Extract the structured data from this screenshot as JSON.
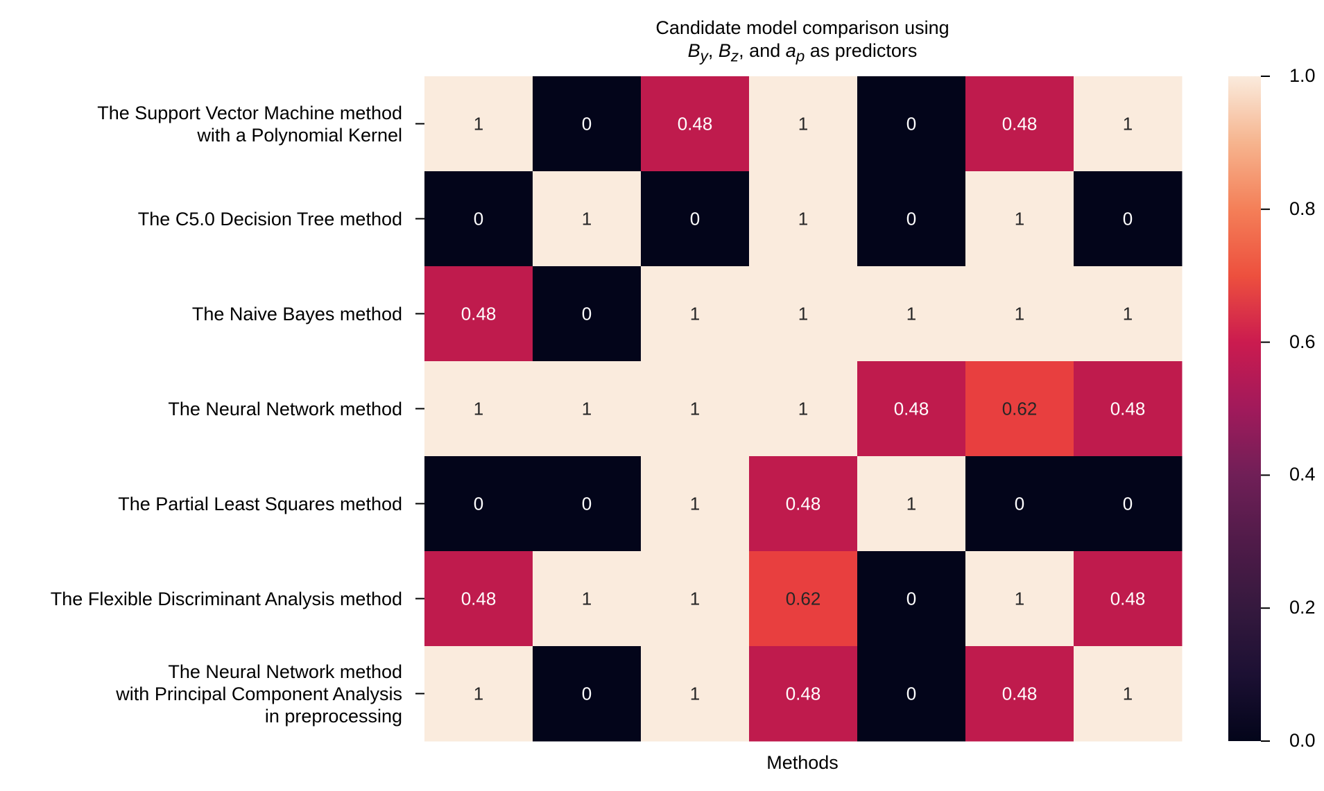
{
  "chart_data": {
    "type": "heatmap",
    "title_lines": [
      "Candidate model comparison using",
      "By, Bz, and ap as predictors"
    ],
    "title_math": {
      "pre": "",
      "v1": "B",
      "s1": "y",
      "sep1": ", ",
      "v2": "B",
      "s2": "z",
      "sep2": ", and ",
      "v3": "a",
      "s3": "p",
      "post": " as predictors"
    },
    "xlabel": "Methods",
    "ylabel": "",
    "row_labels": [
      [
        "The Support Vector Machine method",
        "with a Polynomial Kernel"
      ],
      [
        "The C5.0 Decision Tree method"
      ],
      [
        "The Naive Bayes method"
      ],
      [
        "The Neural Network method"
      ],
      [
        "The Partial Least Squares method"
      ],
      [
        "The Flexible Discriminant Analysis method"
      ],
      [
        "The Neural Network method",
        "with Principal Component Analysis",
        "in preprocessing"
      ]
    ],
    "values": [
      [
        1,
        0,
        0.48,
        1,
        0,
        0.48,
        1
      ],
      [
        0,
        1,
        0,
        1,
        0,
        1,
        0
      ],
      [
        0.48,
        0,
        1,
        1,
        1,
        1,
        1
      ],
      [
        1,
        1,
        1,
        1,
        0.48,
        0.62,
        0.48
      ],
      [
        0,
        0,
        1,
        0.48,
        1,
        0,
        0
      ],
      [
        0.48,
        1,
        1,
        0.62,
        0,
        1,
        0.48
      ],
      [
        1,
        0,
        1,
        0.48,
        0,
        0.48,
        1
      ]
    ],
    "annotations": [
      [
        "1",
        "0",
        "0.48",
        "1",
        "0",
        "0.48",
        "1"
      ],
      [
        "0",
        "1",
        "0",
        "1",
        "0",
        "1",
        "0"
      ],
      [
        "0.48",
        "0",
        "1",
        "1",
        "1",
        "1",
        "1"
      ],
      [
        "1",
        "1",
        "1",
        "1",
        "0.48",
        "0.62",
        "0.48"
      ],
      [
        "0",
        "0",
        "1",
        "0.48",
        "1",
        "0",
        "0"
      ],
      [
        "0.48",
        "1",
        "1",
        "0.62",
        "0",
        "1",
        "0.48"
      ],
      [
        "1",
        "0",
        "1",
        "0.48",
        "0",
        "0.48",
        "1"
      ]
    ],
    "vmin": 0,
    "vmax": 1,
    "colormap": "rocket",
    "colorbar_ticks": [
      "0.0",
      "0.2",
      "0.4",
      "0.6",
      "0.8",
      "1.0"
    ],
    "colors": {
      "low": "#03051a",
      "mid": "#bf1b4d",
      "mid_high": "#e83f3f",
      "high": "#faebdd"
    }
  }
}
